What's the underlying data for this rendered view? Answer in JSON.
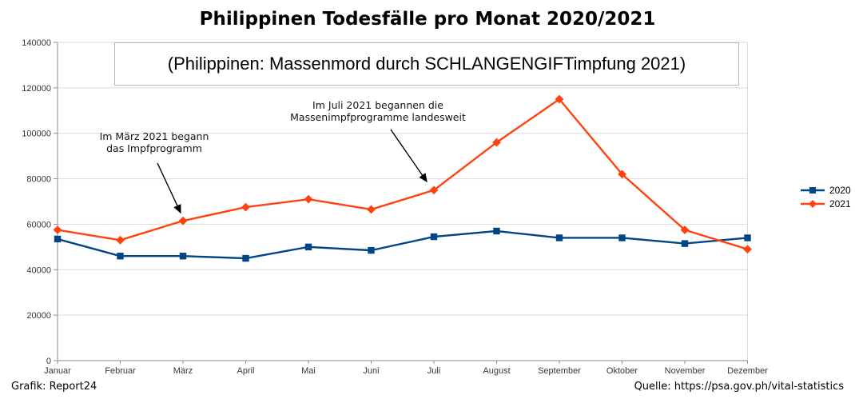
{
  "page": {
    "title": "Philippinen Todesfälle pro Monat 2020/2021",
    "subtitle": "(Philippinen: Massenmord durch SCHLANGENGIFTimpfung 2021)",
    "footer_left": "Grafik: Report24",
    "footer_right": "Quelle: https://psa.gov.ph/vital-statistics"
  },
  "annotations": [
    {
      "line1": "Im März 2021 begann",
      "line2": "das Impfprogramm",
      "target_month": "März"
    },
    {
      "line1": "Im Juli 2021 begannen die",
      "line2": "Massenimpfprogramme landesweit",
      "target_month": "Juli"
    }
  ],
  "chart_data": {
    "type": "line",
    "title": "Philippinen Todesfälle pro Monat 2020/2021",
    "subtitle": "(Philippinen: Massenmord durch SCHLANGENGIFTimpfung 2021)",
    "categories": [
      "Januar",
      "Februar",
      "März",
      "April",
      "Mai",
      "Juni",
      "Juli",
      "August",
      "September",
      "Oktober",
      "November",
      "Dezember"
    ],
    "series": [
      {
        "name": "2020",
        "color": "#004586",
        "marker": "square",
        "values": [
          53500,
          46000,
          46000,
          45000,
          50000,
          48500,
          54500,
          57000,
          54000,
          54000,
          51500,
          54000
        ]
      },
      {
        "name": "2021",
        "color": "#FF420E",
        "marker": "diamond",
        "values": [
          57500,
          53000,
          61500,
          67500,
          71000,
          66500,
          75000,
          96000,
          115000,
          82000,
          57500,
          49000
        ]
      }
    ],
    "xlabel": "",
    "ylabel": "",
    "ylim": [
      0,
      140000
    ],
    "y_tick_step": 20000,
    "grid": true,
    "legend_position": "right",
    "colors": {
      "gridline": "#d9d9d9",
      "axis": "#8e8e8e",
      "annotation_arrow": "#000000"
    }
  }
}
